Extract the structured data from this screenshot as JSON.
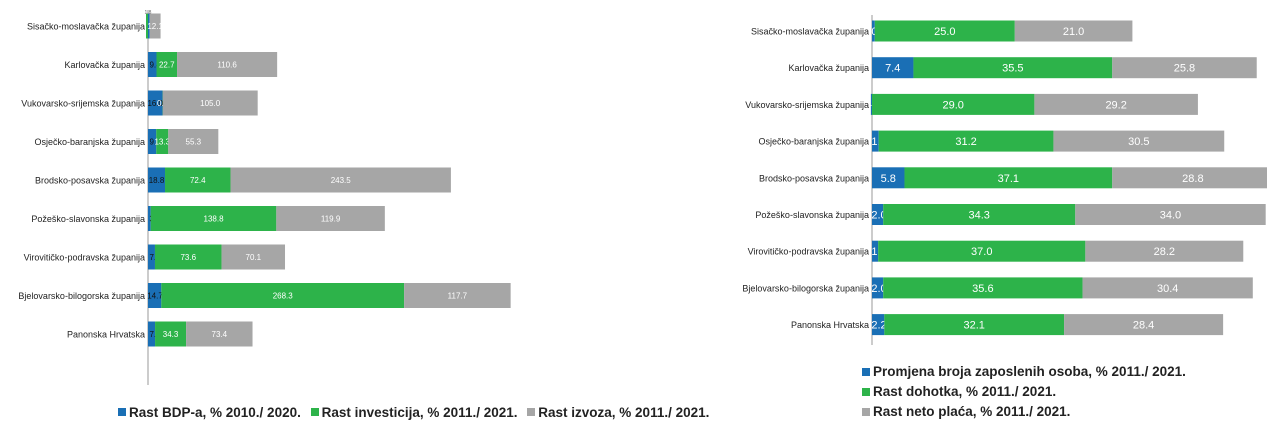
{
  "chart_data": [
    {
      "type": "bar",
      "stacked": true,
      "orientation": "horizontal",
      "categories": [
        "Sisačko-moslavačka županija",
        "Karlovačka županija",
        "Vukovarsko-srijemska županija",
        "Osječko-baranjska županija",
        "Brodsko-posavska županija",
        "Požeško-slavonska županija",
        "Virovitičko-podravska županija",
        "Bjelovarsko-bilogorska županija",
        "Panonska Hrvatska"
      ],
      "series": [
        {
          "name": "Rast BDP-a, % 2010./ 2020.",
          "color": "#1a6fb5",
          "values": [
            1.8,
            9.4,
            16.0,
            9.1,
            18.8,
            3.0,
            7.7,
            14.7,
            7.8
          ],
          "labels": [
            "1.8",
            "9.4",
            "16.0",
            "9.1",
            "18.8",
            "3.0",
            "7.7",
            "14.7",
            "7.8"
          ]
        },
        {
          "name": "Rast investicija, % 2011./ 2021.",
          "color": "#2db34a",
          "values": [
            -2.2,
            22.7,
            0.2,
            13.3,
            72.4,
            138.8,
            73.6,
            268.3,
            34.3
          ],
          "labels": [
            "",
            "22.7",
            "0.2",
            "13.3",
            "72.4",
            "138.8",
            "73.6",
            "268.3",
            "34.3"
          ]
        },
        {
          "name": "Rast izvoza, % 2011./ 2021.",
          "color": "#a6a6a6",
          "values": [
            12.1,
            110.6,
            105.0,
            55.3,
            243.5,
            119.9,
            70.1,
            117.7,
            73.4
          ],
          "labels": [
            "12.1",
            "110.6",
            "105.0",
            "55.3",
            "243.5",
            "119.9",
            "70.1",
            "117.7",
            "73.4"
          ]
        }
      ],
      "axis_label_top": "1.8"
    },
    {
      "type": "bar",
      "stacked": true,
      "orientation": "horizontal",
      "categories": [
        "Sisačko-moslavačka županija",
        "Karlovačka županija",
        "Vukovarsko-srijemska županija",
        "Osječko-baranjska županija",
        "Brodsko-posavska županija",
        "Požeško-slavonska županija",
        "Virovitičko-podravska županija",
        "Bjelovarsko-bilogorska županija",
        "Panonska Hrvatska"
      ],
      "series": [
        {
          "name": "Promjena broja zaposlenih osoba, % 2011./ 2021.",
          "color": "#1a6fb5",
          "values": [
            0.5,
            7.4,
            -0.2,
            1.2,
            5.8,
            2.0,
            1.1,
            2.0,
            2.2
          ],
          "labels": [
            "0.5",
            "7.4",
            "-0.2",
            "1.2",
            "5.8",
            "2.0",
            "1.1",
            "2.0",
            "2.2"
          ]
        },
        {
          "name": "Rast dohotka, % 2011./ 2021.",
          "color": "#2db34a",
          "values": [
            25.0,
            35.5,
            29.0,
            31.2,
            37.1,
            34.3,
            37.0,
            35.6,
            32.1
          ],
          "labels": [
            "25.0",
            "35.5",
            "29.0",
            "31.2",
            "37.1",
            "34.3",
            "37.0",
            "35.6",
            "32.1"
          ]
        },
        {
          "name": "Rast neto plaća, % 2011./ 2021.",
          "color": "#a6a6a6",
          "values": [
            21.0,
            25.8,
            29.2,
            30.5,
            28.8,
            34.0,
            28.2,
            30.4,
            28.4
          ],
          "labels": [
            "21.0",
            "25.8",
            "29.2",
            "30.5",
            "28.8",
            "34.0",
            "28.2",
            "30.4",
            "28.4"
          ]
        }
      ]
    }
  ]
}
